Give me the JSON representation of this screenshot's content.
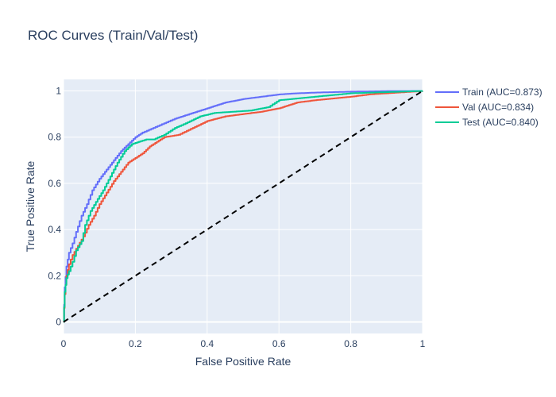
{
  "chart_data": {
    "type": "line",
    "title": "ROC Curves (Train/Val/Test)",
    "xlabel": "False Positive Rate",
    "ylabel": "True Positive Rate",
    "xlim": [
      0,
      1
    ],
    "ylim": [
      -0.05,
      1.05
    ],
    "x_ticks": [
      "0",
      "0.2",
      "0.4",
      "0.6",
      "0.8",
      "1"
    ],
    "y_ticks": [
      "0",
      "0.2",
      "0.4",
      "0.6",
      "0.8",
      "1"
    ],
    "grid": true,
    "legend_position": "top-right outside",
    "background_color": "#e5ecf6",
    "series": [
      {
        "name": "Train (AUC=0.873)",
        "color": "#636efa",
        "x": [
          0,
          0.003,
          0.008,
          0.015,
          0.025,
          0.035,
          0.05,
          0.065,
          0.08,
          0.1,
          0.12,
          0.14,
          0.16,
          0.18,
          0.2,
          0.22,
          0.25,
          0.28,
          0.31,
          0.35,
          0.4,
          0.45,
          0.5,
          0.55,
          0.6,
          0.65,
          0.7,
          0.8,
          0.9,
          1.0
        ],
        "y": [
          0,
          0.15,
          0.24,
          0.3,
          0.34,
          0.39,
          0.46,
          0.51,
          0.57,
          0.62,
          0.66,
          0.7,
          0.74,
          0.77,
          0.8,
          0.82,
          0.84,
          0.86,
          0.88,
          0.9,
          0.925,
          0.95,
          0.965,
          0.975,
          0.985,
          0.99,
          0.993,
          0.997,
          0.999,
          1.0
        ]
      },
      {
        "name": "Val (AUC=0.834)",
        "color": "#ef553b",
        "x": [
          0,
          0.003,
          0.008,
          0.015,
          0.025,
          0.04,
          0.055,
          0.07,
          0.085,
          0.1,
          0.12,
          0.14,
          0.16,
          0.18,
          0.2,
          0.22,
          0.24,
          0.26,
          0.28,
          0.32,
          0.36,
          0.4,
          0.45,
          0.5,
          0.55,
          0.6,
          0.65,
          0.7,
          0.8,
          0.85,
          0.9,
          1.0
        ],
        "y": [
          0,
          0.12,
          0.2,
          0.25,
          0.29,
          0.33,
          0.37,
          0.42,
          0.46,
          0.51,
          0.56,
          0.61,
          0.65,
          0.69,
          0.71,
          0.73,
          0.76,
          0.78,
          0.8,
          0.81,
          0.84,
          0.87,
          0.89,
          0.9,
          0.91,
          0.925,
          0.95,
          0.96,
          0.975,
          0.985,
          0.99,
          1.0
        ]
      },
      {
        "name": "Test (AUC=0.840)",
        "color": "#00cc96",
        "x": [
          0,
          0.003,
          0.008,
          0.015,
          0.025,
          0.035,
          0.05,
          0.06,
          0.075,
          0.09,
          0.11,
          0.13,
          0.15,
          0.17,
          0.19,
          0.21,
          0.23,
          0.25,
          0.28,
          0.31,
          0.34,
          0.38,
          0.42,
          0.47,
          0.52,
          0.57,
          0.6,
          0.7,
          0.8,
          0.9,
          1.0
        ],
        "y": [
          0,
          0.13,
          0.19,
          0.22,
          0.26,
          0.31,
          0.35,
          0.42,
          0.48,
          0.52,
          0.57,
          0.63,
          0.69,
          0.74,
          0.77,
          0.78,
          0.79,
          0.79,
          0.81,
          0.84,
          0.86,
          0.89,
          0.905,
          0.91,
          0.915,
          0.93,
          0.96,
          0.975,
          0.99,
          0.995,
          1.0
        ]
      },
      {
        "name": "",
        "color": "#000000",
        "dash": true,
        "x": [
          0,
          1
        ],
        "y": [
          0,
          1
        ]
      }
    ]
  }
}
